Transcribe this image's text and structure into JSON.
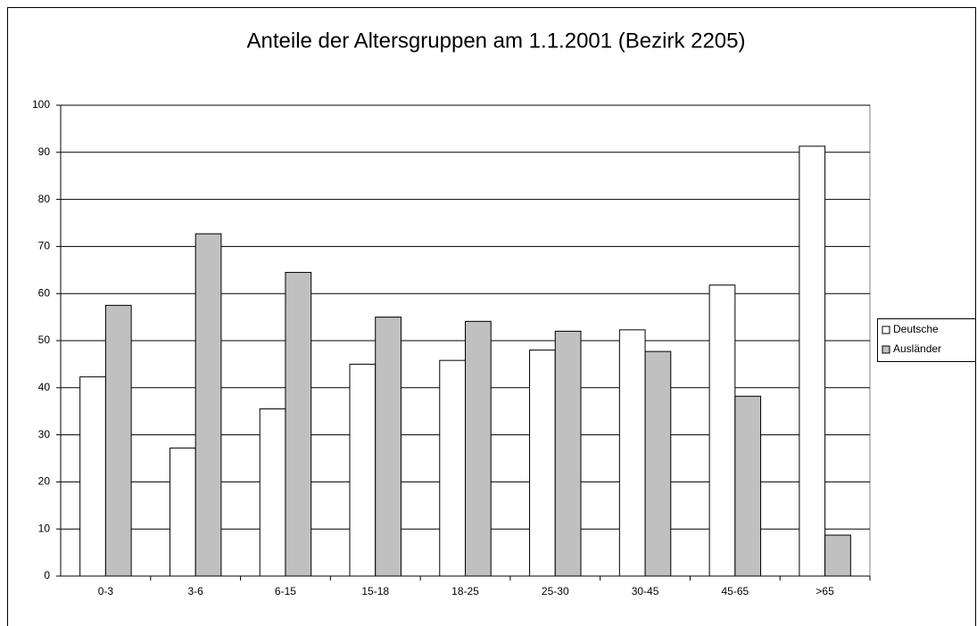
{
  "chart_data": {
    "type": "bar",
    "title": "Anteile der Altersgruppen am 1.1.2001 (Bezirk 2205)",
    "categories": [
      "0-3",
      "3-6",
      "6-15",
      "15-18",
      "18-25",
      "25-30",
      "30-45",
      "45-65",
      ">65"
    ],
    "series": [
      {
        "name": "Deutsche",
        "color": "#ffffff",
        "values": [
          42.3,
          27.2,
          35.5,
          45,
          45.8,
          48,
          52.3,
          61.8,
          91.3
        ]
      },
      {
        "name": "Ausländer",
        "color": "#c0c0c0",
        "values": [
          57.5,
          72.7,
          64.5,
          55,
          54.1,
          52,
          47.7,
          38.2,
          8.7
        ]
      }
    ],
    "ylim": [
      0,
      100
    ],
    "yticks": [
      0,
      10,
      20,
      30,
      40,
      50,
      60,
      70,
      80,
      90,
      100
    ],
    "grid": true,
    "legend": "right"
  }
}
